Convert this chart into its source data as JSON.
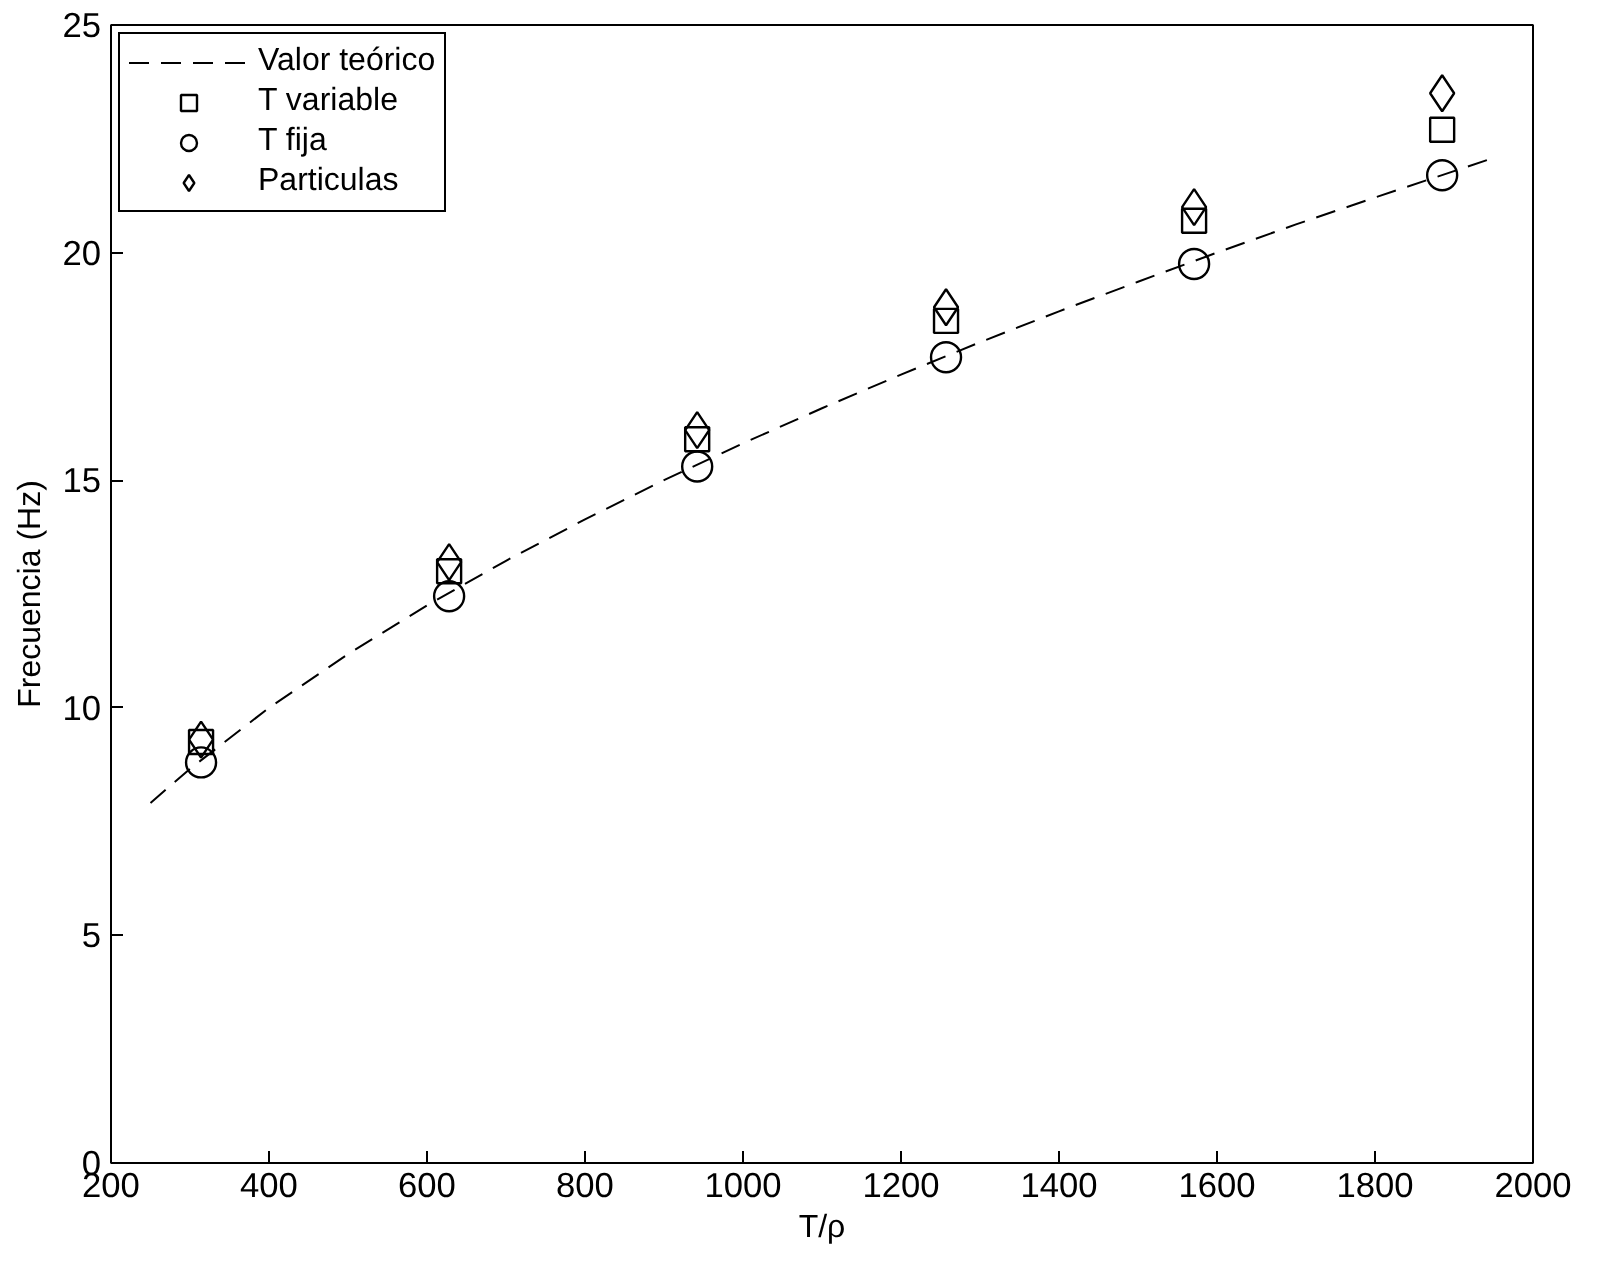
{
  "chart_data": {
    "type": "scatter",
    "xlabel": "T/ρ",
    "ylabel": "Frecuencia (Hz)",
    "xlim": [
      200,
      2000
    ],
    "xticks": [
      200,
      400,
      600,
      800,
      1000,
      1200,
      1400,
      1600,
      1800,
      2000
    ],
    "ylim": [
      0,
      25
    ],
    "yticks": [
      0,
      5,
      10,
      15,
      20,
      25
    ],
    "grid": false,
    "legend": "top left",
    "series": [
      {
        "name": "Valor teórico",
        "type": "line",
        "line_style": "dashed",
        "marker": "none",
        "color": "#000000",
        "x": [
          250,
          300,
          400,
          500,
          600,
          700,
          800,
          900,
          1000,
          1100,
          1200,
          1300,
          1400,
          1500,
          1600,
          1700,
          1800,
          1900,
          1950
        ],
        "values": [
          7.91,
          8.66,
          10.0,
          11.18,
          12.25,
          13.23,
          14.14,
          15.0,
          15.81,
          16.58,
          17.32,
          18.03,
          18.71,
          19.36,
          20.0,
          20.62,
          21.21,
          21.79,
          22.08
        ]
      },
      {
        "name": "T variable",
        "marker": "square",
        "color": "#000000",
        "x": [
          314,
          628,
          942,
          1257,
          1571,
          1885
        ],
        "values": [
          9.25,
          13.0,
          15.9,
          18.5,
          20.7,
          22.7
        ]
      },
      {
        "name": "T fija",
        "marker": "circle",
        "color": "#000000",
        "x": [
          314,
          628,
          942,
          1257,
          1571,
          1885
        ],
        "values": [
          8.8,
          12.45,
          15.3,
          17.7,
          19.75,
          21.7
        ]
      },
      {
        "name": "Particulas",
        "marker": "diamond",
        "color": "#000000",
        "x": [
          314,
          628,
          942,
          1257,
          1571,
          1885
        ],
        "values": [
          9.3,
          13.2,
          16.1,
          18.8,
          21.0,
          23.5
        ]
      }
    ]
  }
}
